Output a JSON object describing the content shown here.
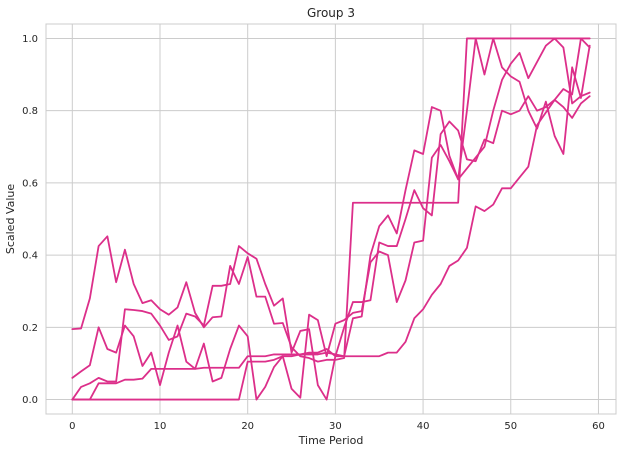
{
  "chart_data": {
    "type": "line",
    "title": "Group 3",
    "xlabel": "Time Period",
    "ylabel": "Scaled Value",
    "xlim": [
      -3,
      62
    ],
    "ylim": [
      -0.04,
      1.04
    ],
    "xticks": [
      0,
      10,
      20,
      30,
      40,
      50,
      60
    ],
    "yticks": [
      0.0,
      0.2,
      0.4,
      0.6,
      0.8,
      1.0
    ],
    "xtick_labels": [
      "0",
      "10",
      "20",
      "30",
      "40",
      "50",
      "60"
    ],
    "ytick_labels": [
      "0.0",
      "0.2",
      "0.4",
      "0.6",
      "0.8",
      "1.0"
    ],
    "grid": true,
    "line_color": "#dc2f8a",
    "series": [
      {
        "values": [
          0.195,
          0.197,
          0.28,
          0.425,
          0.452,
          0.325,
          0.415,
          0.32,
          0.267,
          0.275,
          0.25,
          0.235,
          0.255,
          0.325,
          0.24,
          0.2,
          0.228,
          0.23,
          0.37,
          0.32,
          0.395,
          0.285,
          0.285,
          0.21,
          0.212,
          0.145,
          0.12,
          0.115,
          0.105,
          0.11,
          0.11,
          0.115,
          0.545,
          0.545,
          0.545,
          0.545,
          0.545,
          0.545,
          0.545,
          0.545,
          0.545,
          0.545,
          0.545,
          0.545,
          0.545,
          1.0,
          1.0,
          1.0,
          1.0,
          1.0,
          1.0,
          1.0,
          1.0,
          1.0,
          1.0,
          1.0,
          1.0,
          1.0,
          1.0,
          1.0
        ]
      },
      {
        "values": [
          0.06,
          0.078,
          0.095,
          0.2,
          0.14,
          0.13,
          0.205,
          0.175,
          0.093,
          0.13,
          0.04,
          0.13,
          0.205,
          0.105,
          0.085,
          0.155,
          0.05,
          0.06,
          0.14,
          0.205,
          0.175,
          0.0,
          0.035,
          0.09,
          0.12,
          0.03,
          0.005,
          0.235,
          0.22,
          0.12,
          0.21,
          0.22,
          0.24,
          0.245,
          0.38,
          0.41,
          0.4,
          0.27,
          0.33,
          0.435,
          0.44,
          0.67,
          0.705,
          0.66,
          0.61,
          0.64,
          0.67,
          0.7,
          0.8,
          0.885,
          0.93,
          0.96,
          0.89,
          0.935,
          0.98,
          1.0,
          0.975,
          0.82,
          0.84,
          0.85
        ]
      },
      {
        "values": [
          0.0,
          0.035,
          0.045,
          0.06,
          0.05,
          0.05,
          0.25,
          0.248,
          0.245,
          0.238,
          0.205,
          0.165,
          0.175,
          0.238,
          0.23,
          0.205,
          0.315,
          0.315,
          0.32,
          0.425,
          0.405,
          0.39,
          0.32,
          0.26,
          0.28,
          0.13,
          0.19,
          0.195,
          0.04,
          0.0,
          0.12,
          0.12,
          0.225,
          0.23,
          0.4,
          0.48,
          0.51,
          0.46,
          0.58,
          0.69,
          0.68,
          0.81,
          0.8,
          0.675,
          0.61,
          0.8,
          1.0,
          0.9,
          1.0,
          0.92,
          0.895,
          0.88,
          0.8,
          0.75,
          0.825,
          0.73,
          0.68,
          0.92,
          0.835,
          0.98
        ]
      },
      {
        "values": [
          0.0,
          0.0,
          0.0,
          0.045,
          0.045,
          0.045,
          0.055,
          0.055,
          0.058,
          0.085,
          0.085,
          0.085,
          0.085,
          0.085,
          0.085,
          0.088,
          0.088,
          0.088,
          0.088,
          0.088,
          0.12,
          0.12,
          0.12,
          0.125,
          0.125,
          0.125,
          0.125,
          0.125,
          0.125,
          0.13,
          0.125,
          0.12,
          0.12,
          0.12,
          0.12,
          0.12,
          0.13,
          0.13,
          0.16,
          0.225,
          0.25,
          0.29,
          0.32,
          0.37,
          0.385,
          0.42,
          0.535,
          0.522,
          0.54,
          0.585,
          0.585,
          0.615,
          0.645,
          0.76,
          0.795,
          0.83,
          0.81,
          0.78,
          0.82,
          0.84
        ]
      },
      {
        "values": [
          0.0,
          0.0,
          0.0,
          0.0,
          0.0,
          0.0,
          0.0,
          0.0,
          0.0,
          0.0,
          0.0,
          0.0,
          0.0,
          0.0,
          0.0,
          0.0,
          0.0,
          0.0,
          0.0,
          0.0,
          0.105,
          0.105,
          0.105,
          0.11,
          0.12,
          0.12,
          0.125,
          0.13,
          0.13,
          0.14,
          0.12,
          0.2,
          0.27,
          0.27,
          0.275,
          0.435,
          0.425,
          0.425,
          0.5,
          0.58,
          0.53,
          0.51,
          0.735,
          0.77,
          0.745,
          0.665,
          0.66,
          0.72,
          0.71,
          0.8,
          0.79,
          0.8,
          0.84,
          0.8,
          0.81,
          0.83,
          0.86,
          0.845,
          1.0,
          0.975
        ]
      }
    ]
  }
}
